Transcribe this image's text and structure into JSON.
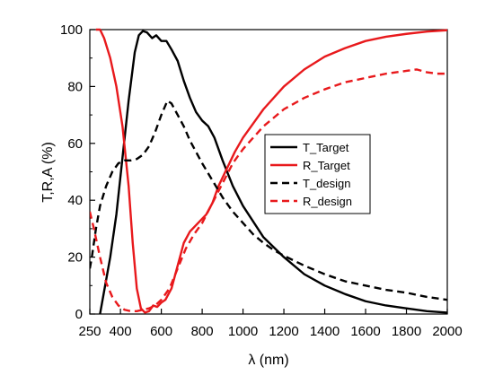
{
  "chart_data": {
    "type": "line",
    "xlabel": "λ (nm)",
    "ylabel": "T,R,A (%)",
    "xlim": [
      250,
      2000
    ],
    "ylim": [
      0,
      100
    ],
    "x_ticks": [
      250,
      400,
      600,
      800,
      1000,
      1200,
      1400,
      1600,
      1800,
      2000
    ],
    "y_ticks": [
      0,
      20,
      40,
      60,
      80,
      100
    ],
    "grid": false,
    "legend_position": "center-right",
    "series": [
      {
        "name": "T_Target",
        "color": "#000000",
        "dash": "solid",
        "points": [
          [
            300,
            0
          ],
          [
            320,
            8
          ],
          [
            350,
            20
          ],
          [
            380,
            35
          ],
          [
            410,
            55
          ],
          [
            440,
            75
          ],
          [
            470,
            92
          ],
          [
            490,
            98
          ],
          [
            510,
            99.5
          ],
          [
            530,
            99
          ],
          [
            555,
            97
          ],
          [
            575,
            98
          ],
          [
            600,
            96
          ],
          [
            625,
            96
          ],
          [
            650,
            93
          ],
          [
            680,
            89
          ],
          [
            710,
            82
          ],
          [
            740,
            76
          ],
          [
            770,
            71
          ],
          [
            800,
            68
          ],
          [
            830,
            66
          ],
          [
            860,
            62
          ],
          [
            900,
            54
          ],
          [
            950,
            45
          ],
          [
            1000,
            38
          ],
          [
            1100,
            27
          ],
          [
            1200,
            20
          ],
          [
            1300,
            14
          ],
          [
            1400,
            10
          ],
          [
            1500,
            7
          ],
          [
            1600,
            4.5
          ],
          [
            1700,
            3
          ],
          [
            1800,
            2
          ],
          [
            1900,
            1
          ],
          [
            2000,
            0.5
          ]
        ]
      },
      {
        "name": "R_Target",
        "color": "#e8191c",
        "dash": "solid",
        "points": [
          [
            280,
            100
          ],
          [
            300,
            100
          ],
          [
            320,
            97
          ],
          [
            350,
            90
          ],
          [
            380,
            80
          ],
          [
            410,
            66
          ],
          [
            440,
            45
          ],
          [
            460,
            25
          ],
          [
            480,
            9
          ],
          [
            500,
            2
          ],
          [
            520,
            0.5
          ],
          [
            540,
            1
          ],
          [
            560,
            3
          ],
          [
            580,
            2.5
          ],
          [
            600,
            4
          ],
          [
            620,
            5
          ],
          [
            650,
            9
          ],
          [
            680,
            17
          ],
          [
            710,
            25
          ],
          [
            740,
            29
          ],
          [
            780,
            32
          ],
          [
            820,
            35
          ],
          [
            850,
            39
          ],
          [
            880,
            45
          ],
          [
            920,
            51
          ],
          [
            960,
            57
          ],
          [
            1000,
            62
          ],
          [
            1100,
            72
          ],
          [
            1200,
            80
          ],
          [
            1300,
            86
          ],
          [
            1400,
            90.5
          ],
          [
            1500,
            93.5
          ],
          [
            1600,
            96
          ],
          [
            1700,
            97.5
          ],
          [
            1800,
            98.5
          ],
          [
            1900,
            99.3
          ],
          [
            2000,
            99.8
          ]
        ]
      },
      {
        "name": "T_design",
        "color": "#000000",
        "dash": "dashed",
        "points": [
          [
            250,
            16
          ],
          [
            260,
            20
          ],
          [
            280,
            30
          ],
          [
            300,
            38
          ],
          [
            330,
            45
          ],
          [
            360,
            50
          ],
          [
            390,
            53
          ],
          [
            420,
            54
          ],
          [
            450,
            54
          ],
          [
            480,
            54.5
          ],
          [
            510,
            56
          ],
          [
            540,
            59
          ],
          [
            570,
            64
          ],
          [
            600,
            70
          ],
          [
            630,
            75
          ],
          [
            650,
            74
          ],
          [
            680,
            70
          ],
          [
            710,
            66
          ],
          [
            740,
            61
          ],
          [
            770,
            57
          ],
          [
            800,
            53
          ],
          [
            850,
            47
          ],
          [
            900,
            41
          ],
          [
            950,
            36
          ],
          [
            1000,
            32
          ],
          [
            1050,
            28
          ],
          [
            1100,
            25
          ],
          [
            1150,
            22.5
          ],
          [
            1200,
            20.5
          ],
          [
            1300,
            17
          ],
          [
            1400,
            14
          ],
          [
            1500,
            11.5
          ],
          [
            1600,
            10
          ],
          [
            1700,
            8.5
          ],
          [
            1800,
            7.5
          ],
          [
            1900,
            6
          ],
          [
            2000,
            5
          ]
        ]
      },
      {
        "name": "R_design",
        "color": "#e8191c",
        "dash": "dashed",
        "points": [
          [
            250,
            36
          ],
          [
            270,
            30
          ],
          [
            300,
            20
          ],
          [
            330,
            11
          ],
          [
            360,
            6
          ],
          [
            390,
            3
          ],
          [
            420,
            1.5
          ],
          [
            450,
            1
          ],
          [
            480,
            1
          ],
          [
            510,
            1.5
          ],
          [
            540,
            2
          ],
          [
            570,
            3
          ],
          [
            600,
            5
          ],
          [
            640,
            9
          ],
          [
            680,
            16
          ],
          [
            720,
            23
          ],
          [
            760,
            28
          ],
          [
            800,
            32
          ],
          [
            850,
            39
          ],
          [
            900,
            46
          ],
          [
            950,
            53
          ],
          [
            1000,
            58
          ],
          [
            1100,
            66
          ],
          [
            1200,
            72
          ],
          [
            1300,
            76
          ],
          [
            1400,
            79
          ],
          [
            1500,
            81.5
          ],
          [
            1600,
            83
          ],
          [
            1700,
            84.5
          ],
          [
            1800,
            85.5
          ],
          [
            1850,
            86
          ],
          [
            1900,
            85
          ],
          [
            1950,
            84.5
          ],
          [
            2000,
            84.5
          ]
        ]
      }
    ]
  }
}
